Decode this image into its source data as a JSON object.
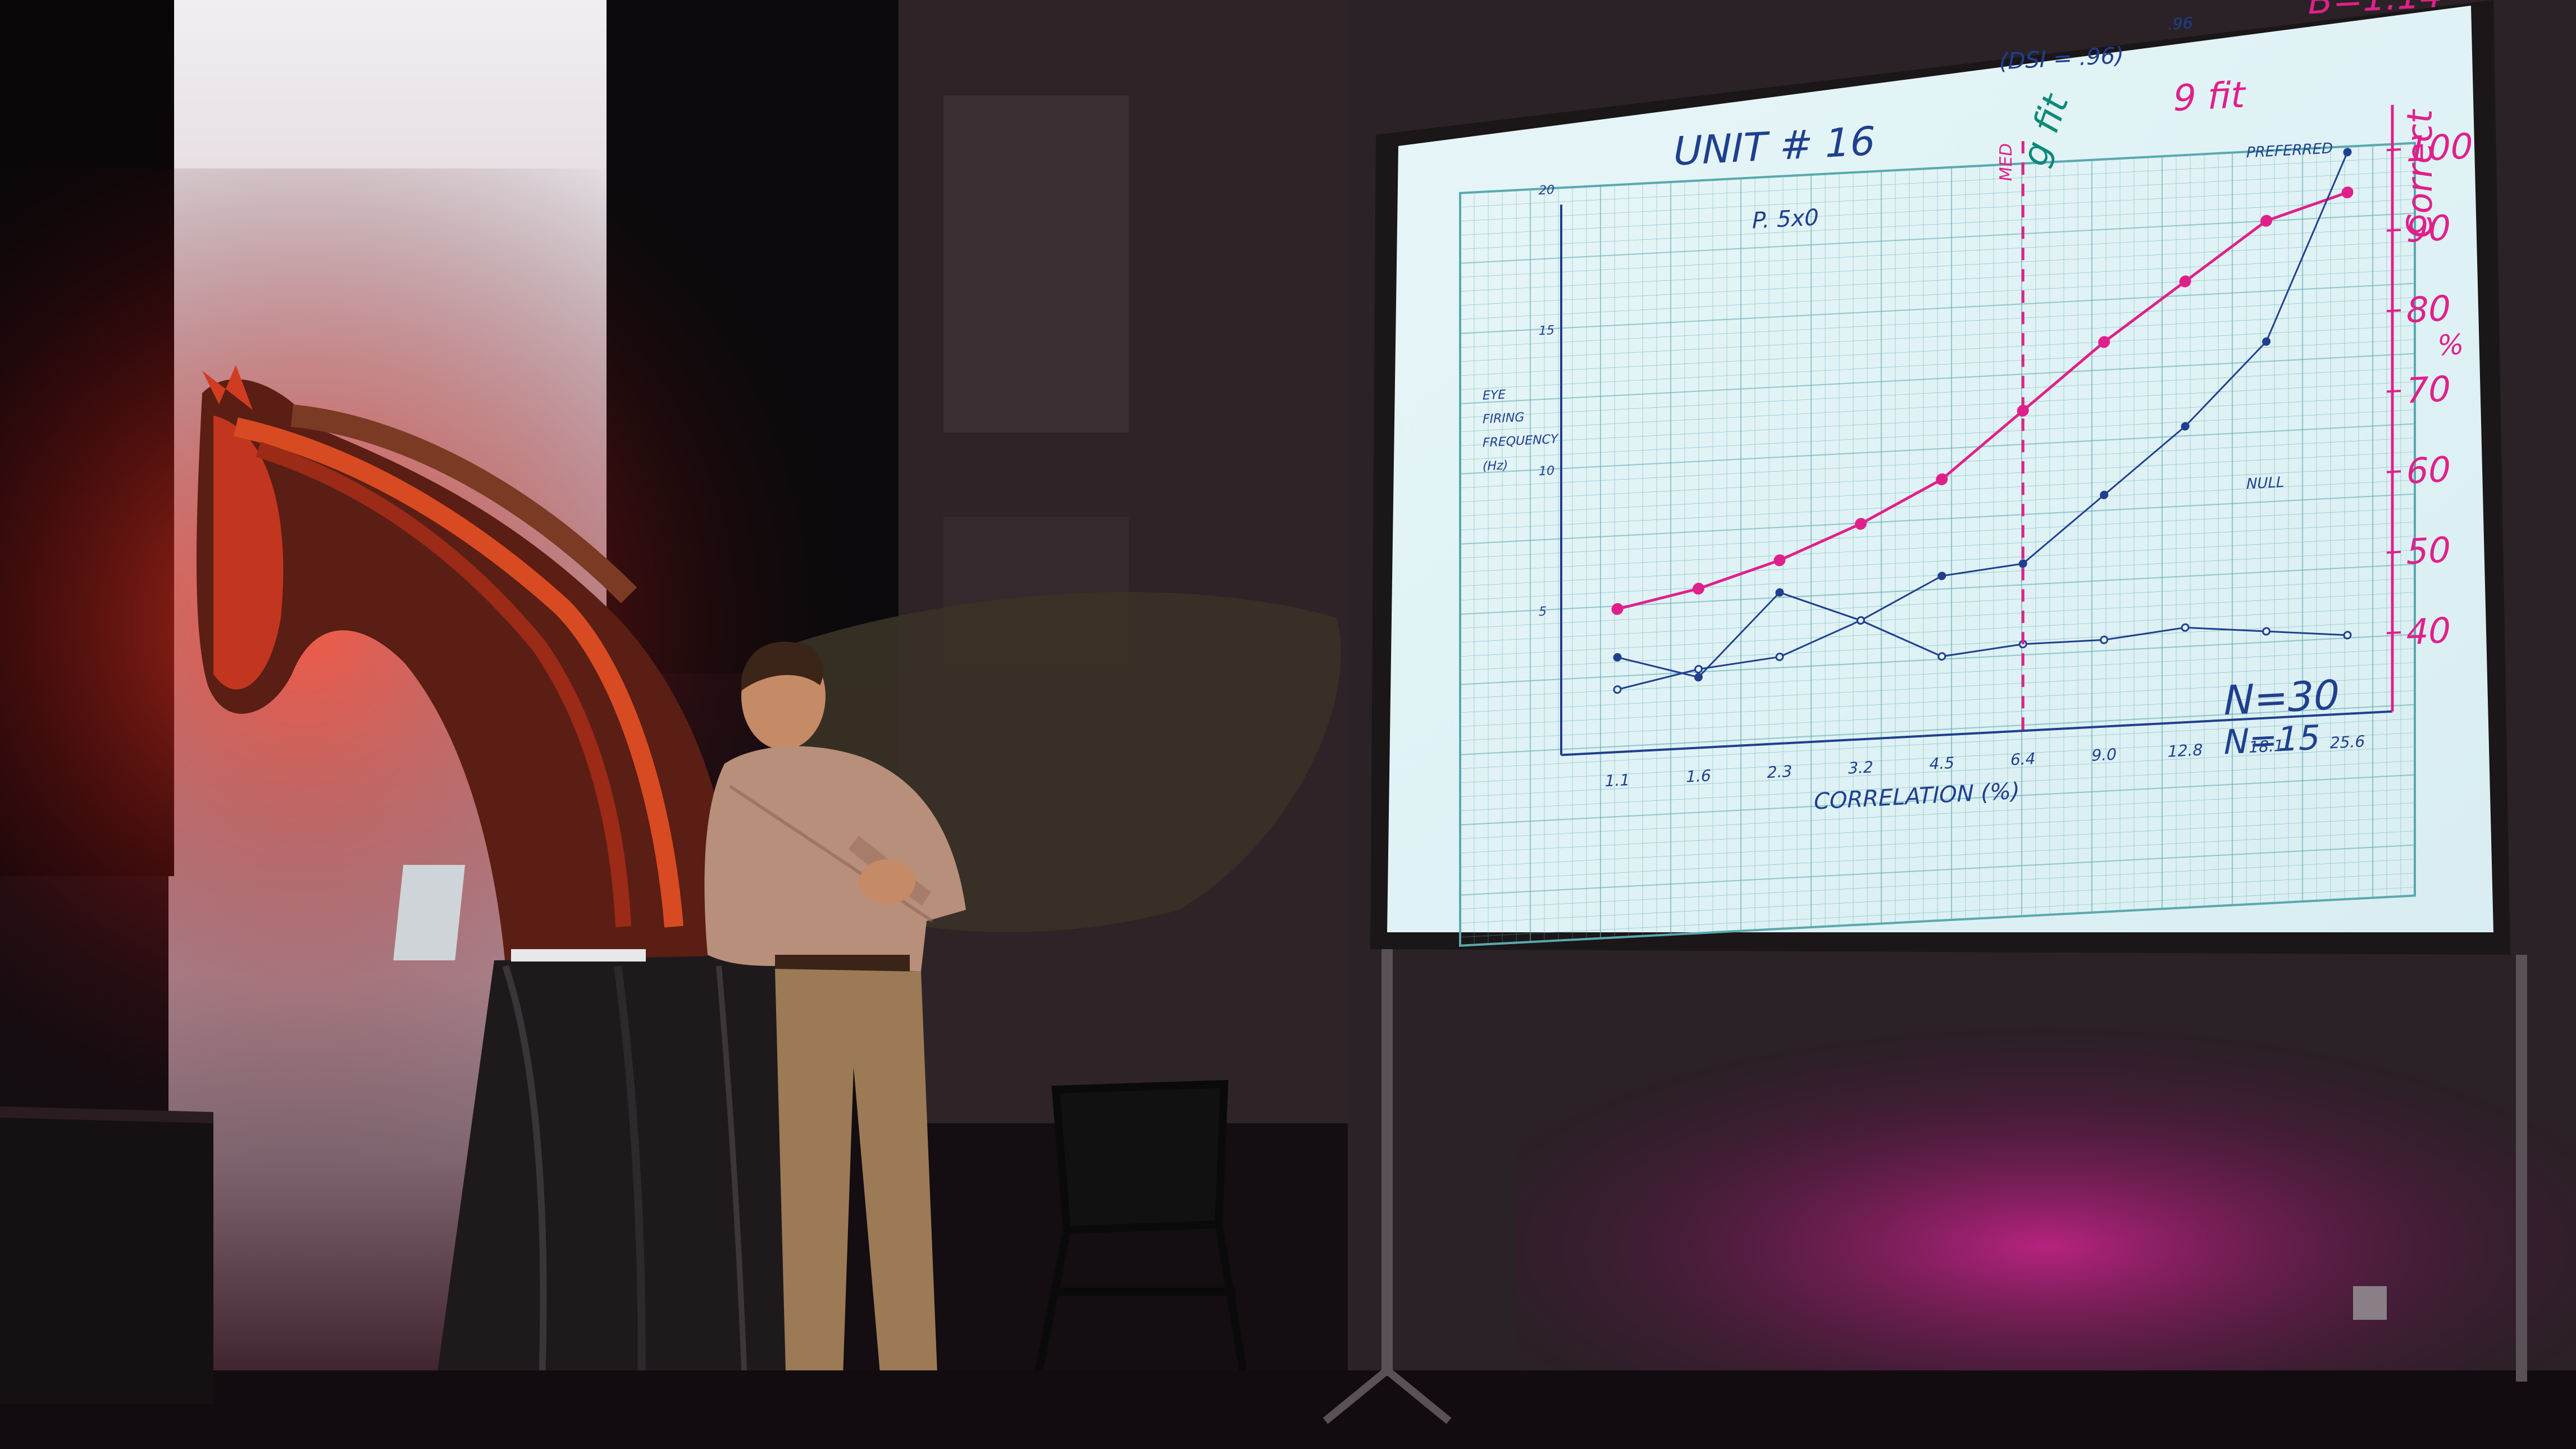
{
  "scene": {
    "colors": {
      "wall_lit": "#e8d8dc",
      "red_light": "#ff2a1a",
      "magenta_light": "#d0238f",
      "screen_bg": "#e3f3f6",
      "grid": "#5aa9ae",
      "marker_pink": "#e0208a",
      "marker_blue": "#1f3f8f",
      "marker_teal": "#0d8a78",
      "floor": "#120c10"
    }
  },
  "chart_data": {
    "type": "line",
    "title": "UNIT # 16",
    "annotations": {
      "dsi": "(DSI = .96)",
      "dsi_extra": ".96",
      "beta": "B=1.14",
      "fits": "g fit",
      "fits_extra": "9 fit",
      "mean_line": "MED",
      "label_p": "P. 5x0",
      "preferred": "PREFERRED",
      "null": "NULL",
      "n30": "N=30",
      "n15": "N=15",
      "corr_axis": "Correct",
      "percent_mark": "%"
    },
    "ylabel_left": [
      "EYE",
      "FIRING",
      "FREQUENCY",
      "(Hz)"
    ],
    "xlabel": "CORRELATION (%)",
    "categories": [
      "1.1",
      "1.6",
      "2.3",
      "3.2",
      "4.5",
      "6.4",
      "9.0",
      "12.8",
      "18.1",
      "25.6"
    ],
    "left_ticks": [
      "5",
      "10",
      "15",
      "20"
    ],
    "right_ticks": [
      "40",
      "50",
      "60",
      "70",
      "80",
      "90",
      "100"
    ],
    "right_range": [
      40,
      100
    ],
    "left_range": [
      0,
      20
    ],
    "series": [
      {
        "values": [
          48,
          50,
          53,
          57,
          62,
          70,
          78,
          85,
          92,
          95
        ]
      },
      {
        "values": [
          42,
          39,
          49,
          45,
          50,
          51,
          59,
          67,
          77,
          100
        ]
      },
      {
        "values": [
          38,
          40,
          41,
          45,
          40,
          41,
          41,
          42,
          41,
          40
        ]
      }
    ]
  }
}
